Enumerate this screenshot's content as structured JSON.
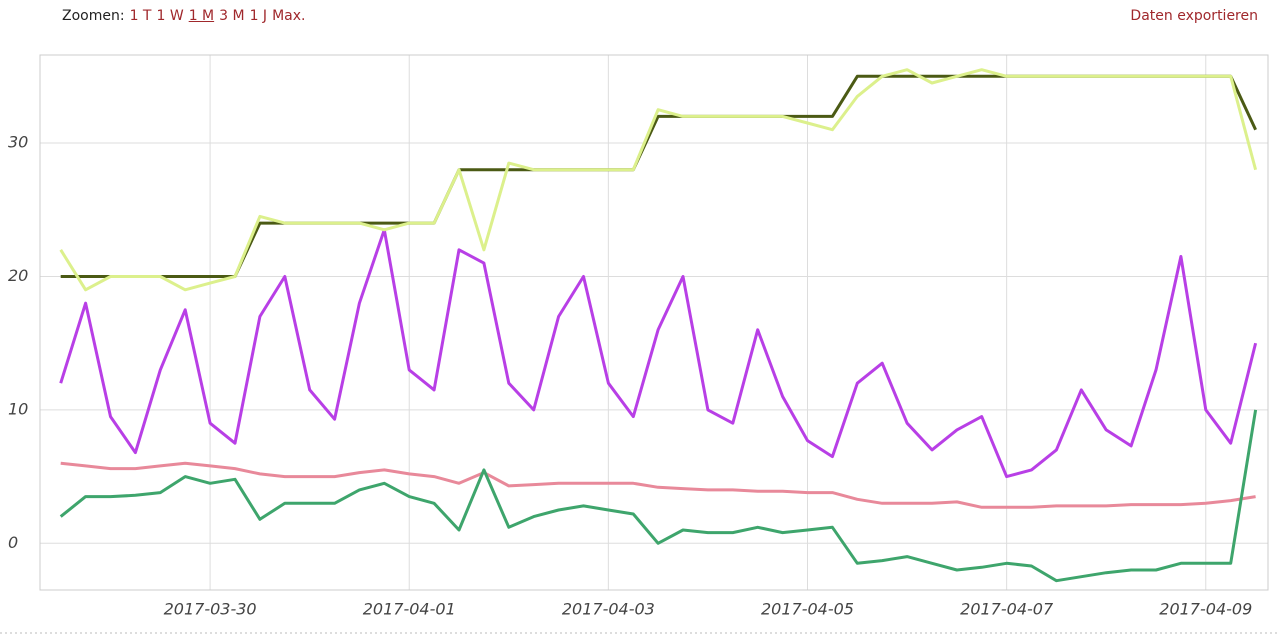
{
  "zoom_label": "Zoomen:",
  "zoom_options": [
    "1 T",
    "1 W",
    "1 M",
    "3 M",
    "1 J",
    "Max."
  ],
  "zoom_selected": 2,
  "export": "Daten exportieren",
  "chart_data": {
    "type": "line",
    "x": [
      "2017-03-28 12:00",
      "2017-03-28 18:00",
      "2017-03-29 00:00",
      "2017-03-29 06:00",
      "2017-03-29 12:00",
      "2017-03-29 18:00",
      "2017-03-30 00:00",
      "2017-03-30 06:00",
      "2017-03-30 12:00",
      "2017-03-30 18:00",
      "2017-03-31 00:00",
      "2017-03-31 06:00",
      "2017-03-31 12:00",
      "2017-03-31 18:00",
      "2017-04-01 00:00",
      "2017-04-01 06:00",
      "2017-04-01 12:00",
      "2017-04-01 18:00",
      "2017-04-02 00:00",
      "2017-04-02 06:00",
      "2017-04-02 12:00",
      "2017-04-02 18:00",
      "2017-04-03 00:00",
      "2017-04-03 06:00",
      "2017-04-03 12:00",
      "2017-04-03 18:00",
      "2017-04-04 00:00",
      "2017-04-04 06:00",
      "2017-04-04 12:00",
      "2017-04-04 18:00",
      "2017-04-05 00:00",
      "2017-04-05 06:00",
      "2017-04-05 12:00",
      "2017-04-05 18:00",
      "2017-04-06 00:00",
      "2017-04-06 06:00",
      "2017-04-06 12:00",
      "2017-04-06 18:00",
      "2017-04-07 00:00",
      "2017-04-07 06:00",
      "2017-04-07 12:00",
      "2017-04-07 18:00",
      "2017-04-08 00:00",
      "2017-04-08 06:00",
      "2017-04-08 12:00",
      "2017-04-08 18:00",
      "2017-04-09 00:00",
      "2017-04-09 06:00",
      "2017-04-09 12:00"
    ],
    "series": [
      {
        "color": "#e8899a",
        "values": [
          6,
          5.8,
          5.6,
          5.6,
          5.8,
          6,
          5.8,
          5.6,
          5.2,
          5,
          5,
          5,
          5.3,
          5.5,
          5.2,
          5,
          4.5,
          5.3,
          4.3,
          4.4,
          4.5,
          4.5,
          4.5,
          4.5,
          4.2,
          4.1,
          4,
          4,
          3.9,
          3.9,
          3.8,
          3.8,
          3.3,
          3,
          3,
          3,
          3.1,
          2.7,
          2.7,
          2.7,
          2.8,
          2.8,
          2.8,
          2.9,
          2.9,
          2.9,
          3,
          3.2,
          3.5
        ]
      },
      {
        "color": "#3ea56c",
        "values": [
          2,
          3.5,
          3.5,
          3.6,
          3.8,
          5,
          4.5,
          4.8,
          1.8,
          3,
          3,
          3,
          4,
          4.5,
          3.5,
          3,
          1,
          5.5,
          1.2,
          2,
          2.5,
          2.8,
          2.5,
          2.2,
          0,
          1,
          0.8,
          0.8,
          1.2,
          0.8,
          1,
          1.2,
          -1.5,
          -1.3,
          -1,
          -1.5,
          -2,
          -1.8,
          -1.5,
          -1.7,
          -2.8,
          -2.5,
          -2.2,
          -2,
          -2,
          -1.5,
          -1.5,
          -1.5,
          10
        ]
      },
      {
        "color": "#b83fe6",
        "values": [
          12,
          18,
          9.5,
          6.8,
          13,
          17.5,
          9,
          7.5,
          17,
          20,
          11.5,
          9.3,
          18,
          23.5,
          13,
          11.5,
          22,
          21,
          12,
          10,
          17,
          20,
          12,
          9.5,
          16,
          20,
          10,
          9,
          16,
          11,
          7.7,
          6.5,
          12,
          13.5,
          9,
          7,
          8.5,
          9.5,
          5,
          5.5,
          7,
          11.5,
          8.5,
          7.3,
          13,
          21.5,
          10,
          7.5,
          15
        ]
      },
      {
        "color": "#4b5a14",
        "values": [
          20,
          20,
          20,
          20,
          20,
          20,
          20,
          20,
          24,
          24,
          24,
          24,
          24,
          24,
          24,
          24,
          28,
          28,
          28,
          28,
          28,
          28,
          28,
          28,
          32,
          32,
          32,
          32,
          32,
          32,
          32,
          32,
          35,
          35,
          35,
          35,
          35,
          35,
          35,
          35,
          35,
          35,
          35,
          35,
          35,
          35,
          35,
          35,
          31
        ]
      },
      {
        "color": "#dcf08c",
        "values": [
          22,
          19,
          20,
          20,
          20,
          19,
          19.5,
          20,
          24.5,
          24,
          24,
          24,
          24,
          23.5,
          24,
          24,
          28,
          22,
          28.5,
          28,
          28,
          28,
          28,
          28,
          32.5,
          32,
          32,
          32,
          32,
          32,
          31.5,
          31,
          33.5,
          35,
          35.5,
          34.5,
          35,
          35.5,
          35,
          35,
          35,
          35,
          35,
          35,
          35,
          35,
          35,
          35,
          28
        ]
      }
    ],
    "xlim": [
      "2017-03-28 07:00",
      "2017-04-09 15:00"
    ],
    "xticks": [
      "2017-03-30",
      "2017-04-01",
      "2017-04-03",
      "2017-04-05",
      "2017-04-07",
      "2017-04-09"
    ],
    "ylim": [
      -3.5,
      36.6
    ],
    "yticks": [
      0,
      10,
      20,
      30
    ],
    "grid": true
  }
}
